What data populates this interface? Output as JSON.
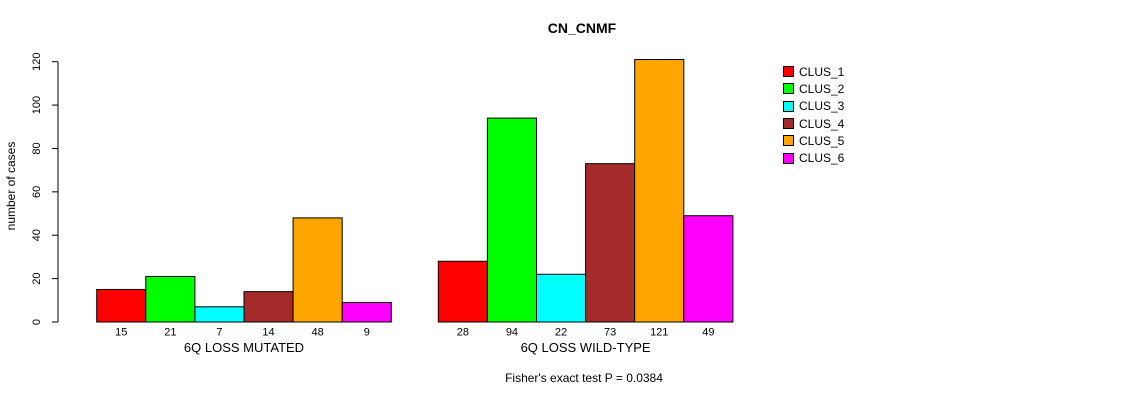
{
  "title": "CN_CNMF",
  "subtitle": "Fisher's exact test P = 0.0384",
  "ylabel": "number of cases",
  "legend": {
    "items": [
      {
        "label": "CLUS_1",
        "color": "#FF0000"
      },
      {
        "label": "CLUS_2",
        "color": "#00FF00"
      },
      {
        "label": "CLUS_3",
        "color": "#00FFFF"
      },
      {
        "label": "CLUS_4",
        "color": "#A52A2A"
      },
      {
        "label": "CLUS_5",
        "color": "#FFA500"
      },
      {
        "label": "CLUS_6",
        "color": "#FF00FF"
      }
    ]
  },
  "chart_data": {
    "type": "bar",
    "title": "CN_CNMF",
    "ylabel": "number of cases",
    "xlabel": "",
    "ylim": [
      0,
      120
    ],
    "yticks": [
      0,
      20,
      40,
      60,
      80,
      100,
      120
    ],
    "grid": false,
    "legend_position": "right",
    "bar_stroke_color": "#000000",
    "annotation": "Fisher's exact test P = 0.0384",
    "series": [
      "CLUS_1",
      "CLUS_2",
      "CLUS_3",
      "CLUS_4",
      "CLUS_5",
      "CLUS_6"
    ],
    "colors": [
      "#FF0000",
      "#00FF00",
      "#00FFFF",
      "#A52A2A",
      "#FFA500",
      "#FF00FF"
    ],
    "groups": [
      {
        "label": "6Q LOSS MUTATED",
        "values": [
          15,
          21,
          7,
          14,
          48,
          9
        ]
      },
      {
        "label": "6Q LOSS WILD-TYPE",
        "values": [
          28,
          94,
          22,
          73,
          121,
          49
        ]
      }
    ]
  }
}
